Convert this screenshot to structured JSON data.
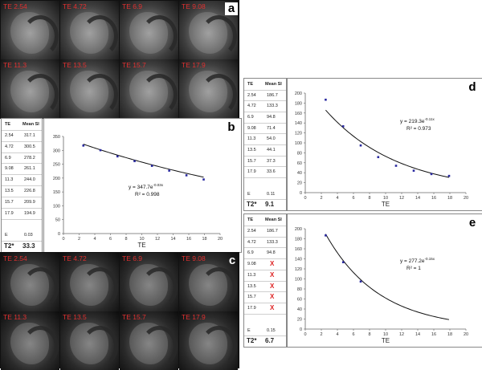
{
  "panel_a": {
    "letter": "a",
    "images": [
      "TE 2.54",
      "TE 4.72",
      "TE 6.9",
      "TE 9.08",
      "TE 11.3",
      "TE 13.5",
      "TE 15.7",
      "TE 17.9"
    ]
  },
  "panel_c": {
    "letter": "c",
    "images": [
      "TE 2.54",
      "TE 4.72",
      "TE 6.9",
      "TE 9.08",
      "TE 11.3",
      "TE 13.5",
      "TE 15.7",
      "TE 17.9"
    ]
  },
  "table_b": {
    "headers": [
      "TE",
      "Mean SI"
    ],
    "rows": [
      [
        "2.54",
        "317.1"
      ],
      [
        "4.72",
        "300.5"
      ],
      [
        "6.9",
        "278.2"
      ],
      [
        "9.08",
        "261.1"
      ],
      [
        "11.3",
        "244.0"
      ],
      [
        "13.5",
        "226.8"
      ],
      [
        "15.7",
        "209.9"
      ],
      [
        "17.9",
        "194.9"
      ]
    ],
    "e_label": "E",
    "e_value": "0.03",
    "t2_label": "T2*",
    "t2_value": "33.3"
  },
  "table_d": {
    "headers": [
      "TE",
      "Mean SI"
    ],
    "rows": [
      [
        "2.54",
        "186.7"
      ],
      [
        "4.72",
        "133.3"
      ],
      [
        "6.9",
        "94.8"
      ],
      [
        "9.08",
        "71.4"
      ],
      [
        "11.3",
        "54.0"
      ],
      [
        "13.5",
        "44.1"
      ],
      [
        "15.7",
        "37.3"
      ],
      [
        "17.9",
        "33.6"
      ]
    ],
    "e_label": "E",
    "e_value": "0.11",
    "t2_label": "T2*",
    "t2_value": "9.1"
  },
  "table_e": {
    "headers": [
      "TE",
      "Mean SI"
    ],
    "rows": [
      [
        "2.54",
        "186.7"
      ],
      [
        "4.72",
        "133.3"
      ],
      [
        "6.9",
        "94.8"
      ],
      [
        "9.08",
        "X"
      ],
      [
        "11.3",
        "X"
      ],
      [
        "13.5",
        "X"
      ],
      [
        "15.7",
        "X"
      ],
      [
        "17.9",
        "X"
      ]
    ],
    "e_label": "E",
    "e_value": "0.15",
    "t2_label": "T2*",
    "t2_value": "6.7"
  },
  "chart_data": [
    {
      "id": "b",
      "letter": "b",
      "type": "scatter",
      "x": [
        2.54,
        4.72,
        6.9,
        9.08,
        11.3,
        13.5,
        15.7,
        17.9
      ],
      "y": [
        317.1,
        300.5,
        278.2,
        261.1,
        244.0,
        226.8,
        209.9,
        194.9
      ],
      "fit": {
        "type": "exponential",
        "a": 347.7,
        "b": -0.03
      },
      "equation": "y = 347.7e",
      "equation_exp": "-0.03x",
      "r2": "R² = 0.998",
      "xlabel": "TE",
      "ylabel": "",
      "xlim": [
        0,
        20
      ],
      "ylim": [
        0,
        350
      ],
      "xticks": [
        "0",
        "2",
        "4",
        "6",
        "8",
        "10",
        "12",
        "14",
        "16",
        "18",
        "20"
      ],
      "yticks": [
        "0",
        "50",
        "100",
        "150",
        "200",
        "250",
        "300",
        "350"
      ]
    },
    {
      "id": "d",
      "letter": "d",
      "type": "scatter",
      "x": [
        2.54,
        4.72,
        6.9,
        9.08,
        11.3,
        13.5,
        15.7,
        17.9
      ],
      "y": [
        186.7,
        133.3,
        94.8,
        71.4,
        54.0,
        44.1,
        37.3,
        33.6
      ],
      "fit": {
        "type": "exponential",
        "a": 219.3,
        "b": -0.11
      },
      "equation": "y = 219.3e",
      "equation_exp": "-0.11x",
      "r2": "R² = 0.973",
      "xlabel": "TE",
      "ylabel": "",
      "xlim": [
        0,
        20
      ],
      "ylim": [
        0,
        200
      ],
      "xticks": [
        "0",
        "2",
        "4",
        "6",
        "8",
        "10",
        "12",
        "14",
        "16",
        "18",
        "20"
      ],
      "yticks": [
        "0",
        "20",
        "40",
        "60",
        "80",
        "100",
        "120",
        "140",
        "160",
        "180",
        "200"
      ]
    },
    {
      "id": "e",
      "letter": "e",
      "type": "scatter",
      "x": [
        2.54,
        4.72,
        6.9
      ],
      "y": [
        186.7,
        133.3,
        94.8
      ],
      "fit": {
        "type": "exponential",
        "a": 277.2,
        "b": -0.15
      },
      "equation": "y = 277.2e",
      "equation_exp": "-0.15x",
      "r2": "R² = 1",
      "xlabel": "TE",
      "ylabel": "",
      "xlim": [
        0,
        20
      ],
      "ylim": [
        0,
        200
      ],
      "xticks": [
        "0",
        "2",
        "4",
        "6",
        "8",
        "10",
        "12",
        "14",
        "16",
        "18",
        "20"
      ],
      "yticks": [
        "0",
        "20",
        "40",
        "60",
        "80",
        "100",
        "120",
        "140",
        "160",
        "180",
        "200"
      ]
    }
  ]
}
